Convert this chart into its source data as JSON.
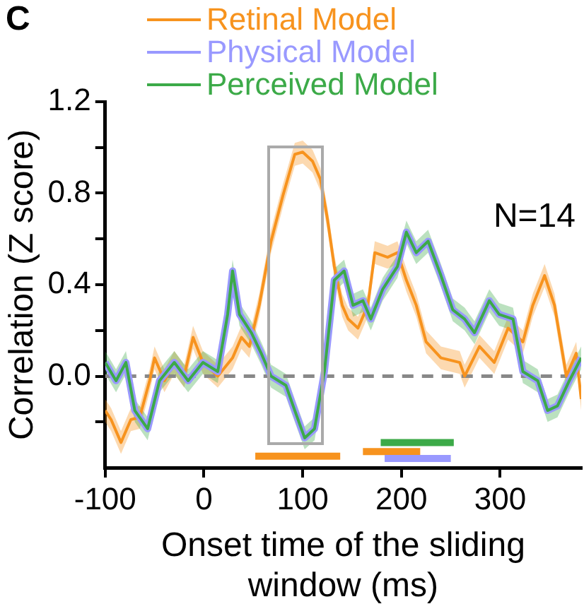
{
  "chart_data": {
    "type": "line",
    "title": "C",
    "xlabel": "Onset time of the sliding window (ms)",
    "ylabel": "Correlation (Z score)",
    "xlim": [
      -100,
      382
    ],
    "xticks": [
      -100,
      0,
      100,
      200,
      300
    ],
    "ylim": [
      -0.4,
      1.2
    ],
    "yticks": [
      {
        "value": -0.2,
        "label": null
      },
      {
        "value": 0,
        "label": "0.0"
      },
      {
        "value": 0.2,
        "label": null
      },
      {
        "value": 0.4,
        "label": "0.4"
      },
      {
        "value": 0.6,
        "label": null
      },
      {
        "value": 0.8,
        "label": "0.8"
      },
      {
        "value": 1.0,
        "label": null
      },
      {
        "value": 1.2,
        "label": "1.2"
      }
    ],
    "grid": false,
    "legend": "top",
    "marker": "none",
    "line_style": "solid",
    "annotations": [
      "N=14"
    ],
    "ref_lines": [
      {
        "axis": "y",
        "value": 0,
        "color": "#888888",
        "line_style": "dashed"
      }
    ],
    "series": [
      {
        "name": "Retinal Model",
        "color": "#f7931e",
        "x": [
          -100,
          -94,
          -84,
          -74,
          -65,
          -55,
          -50,
          -40,
          -30,
          -20,
          -11,
          -1,
          14,
          29,
          38,
          46,
          56,
          68,
          80,
          92,
          100,
          110,
          118,
          125,
          132,
          140,
          146,
          156,
          166,
          173,
          186,
          196,
          205,
          215,
          225,
          240,
          259,
          264,
          279,
          294,
          308,
          323,
          333,
          345,
          355,
          367,
          377,
          382
        ],
        "values": [
          -0.15,
          -0.19,
          -0.29,
          -0.19,
          -0.18,
          -0.02,
          0.08,
          -0.02,
          0.06,
          0,
          0.17,
          0.06,
          0,
          0.08,
          0.17,
          0.13,
          0.31,
          0.59,
          0.79,
          0.97,
          0.98,
          0.94,
          0.86,
          0.69,
          0.48,
          0.31,
          0.25,
          0.21,
          0.31,
          0.54,
          0.52,
          0.54,
          0.42,
          0.31,
          0.15,
          0.08,
          0.06,
          0,
          0.13,
          0.06,
          0.21,
          0.15,
          0.31,
          0.44,
          0.31,
          0,
          0.1,
          -0.1
        ],
        "lower": [
          -0.2,
          -0.24,
          -0.34,
          -0.24,
          -0.23,
          -0.07,
          0.03,
          -0.07,
          0.01,
          -0.05,
          0.12,
          0.01,
          -0.05,
          0.03,
          0.12,
          0.08,
          0.26,
          0.54,
          0.74,
          0.92,
          0.93,
          0.89,
          0.81,
          0.64,
          0.43,
          0.26,
          0.2,
          0.16,
          0.26,
          0.49,
          0.47,
          0.49,
          0.37,
          0.26,
          0.1,
          0.03,
          0.01,
          -0.05,
          0.08,
          0.01,
          0.16,
          0.1,
          0.26,
          0.39,
          0.26,
          -0.05,
          0.05,
          -0.15
        ],
        "upper": [
          -0.1,
          -0.14,
          -0.24,
          -0.14,
          -0.13,
          0.03,
          0.13,
          0.03,
          0.11,
          0.05,
          0.22,
          0.11,
          0.05,
          0.13,
          0.22,
          0.18,
          0.36,
          0.64,
          0.84,
          1.02,
          1.03,
          0.99,
          0.91,
          0.74,
          0.53,
          0.36,
          0.3,
          0.26,
          0.36,
          0.59,
          0.57,
          0.59,
          0.47,
          0.36,
          0.2,
          0.13,
          0.11,
          0.05,
          0.18,
          0.11,
          0.26,
          0.2,
          0.36,
          0.49,
          0.36,
          0.05,
          0.15,
          -0.05
        ]
      },
      {
        "name": "Physical Model",
        "color": "#9999ff",
        "x": [
          -100,
          -89,
          -79,
          -70,
          -57,
          -45,
          -30,
          -16,
          -1,
          14,
          24,
          29,
          36,
          48,
          58,
          68,
          83,
          92,
          102,
          112,
          122,
          132,
          142,
          151,
          161,
          169,
          181,
          196,
          205,
          215,
          227,
          240,
          252,
          264,
          274,
          289,
          299,
          313,
          323,
          338,
          348,
          358,
          370,
          382
        ],
        "values": [
          0.06,
          -0.02,
          0.06,
          -0.15,
          -0.23,
          -0.02,
          0.06,
          -0.02,
          0.06,
          0.02,
          0.27,
          0.46,
          0.27,
          0.19,
          0.1,
          0,
          -0.04,
          -0.15,
          -0.27,
          -0.23,
          0.02,
          0.42,
          0.46,
          0.31,
          0.33,
          0.25,
          0.38,
          0.48,
          0.63,
          0.54,
          0.59,
          0.44,
          0.29,
          0.25,
          0.19,
          0.33,
          0.27,
          0.25,
          0.02,
          -0.02,
          -0.15,
          -0.13,
          -0.02,
          0.08
        ]
      },
      {
        "name": "Perceived Model",
        "color": "#3caa48",
        "x": [
          -100,
          -89,
          -79,
          -70,
          -57,
          -45,
          -30,
          -16,
          -1,
          14,
          24,
          29,
          36,
          48,
          58,
          68,
          83,
          92,
          102,
          112,
          122,
          132,
          142,
          151,
          161,
          169,
          181,
          196,
          205,
          215,
          227,
          240,
          252,
          264,
          274,
          289,
          299,
          313,
          323,
          338,
          348,
          358,
          370,
          382
        ],
        "values": [
          0.06,
          -0.02,
          0.06,
          -0.15,
          -0.23,
          -0.02,
          0.06,
          -0.02,
          0.06,
          0.02,
          0.27,
          0.46,
          0.27,
          0.19,
          0.1,
          0,
          -0.04,
          -0.15,
          -0.27,
          -0.23,
          0.02,
          0.42,
          0.46,
          0.31,
          0.33,
          0.25,
          0.38,
          0.48,
          0.63,
          0.54,
          0.59,
          0.44,
          0.29,
          0.25,
          0.19,
          0.33,
          0.27,
          0.25,
          0.02,
          -0.02,
          -0.15,
          -0.13,
          -0.02,
          0.08
        ],
        "lower": [
          0.01,
          -0.07,
          0.01,
          -0.2,
          -0.28,
          -0.07,
          0.01,
          -0.07,
          0.01,
          -0.03,
          0.22,
          0.41,
          0.22,
          0.14,
          0.05,
          -0.05,
          -0.09,
          -0.2,
          -0.32,
          -0.28,
          -0.03,
          0.37,
          0.41,
          0.26,
          0.28,
          0.2,
          0.33,
          0.43,
          0.58,
          0.49,
          0.54,
          0.39,
          0.24,
          0.2,
          0.14,
          0.28,
          0.22,
          0.2,
          -0.03,
          -0.07,
          -0.2,
          -0.18,
          -0.07,
          0.03
        ],
        "upper": [
          0.11,
          0.03,
          0.11,
          -0.1,
          -0.18,
          0.03,
          0.11,
          0.03,
          0.11,
          0.07,
          0.32,
          0.51,
          0.32,
          0.24,
          0.15,
          0.05,
          0.01,
          -0.1,
          -0.22,
          -0.18,
          0.07,
          0.47,
          0.51,
          0.36,
          0.38,
          0.3,
          0.43,
          0.53,
          0.68,
          0.59,
          0.64,
          0.49,
          0.34,
          0.3,
          0.24,
          0.38,
          0.32,
          0.3,
          0.07,
          0.03,
          -0.1,
          -0.08,
          0.03,
          0.13
        ]
      },
      {
        "color": "#f7931e",
        "x": [
          52,
          138
        ],
        "values": [
          -0.35,
          -0.35
        ]
      },
      {
        "color": "#f7931e",
        "x": [
          161,
          219
        ],
        "values": [
          -0.33,
          -0.33
        ]
      },
      {
        "color": "#3caa48",
        "x": [
          179,
          253
        ],
        "values": [
          -0.29,
          -0.29
        ]
      },
      {
        "color": "#9999ff",
        "x": [
          183,
          250
        ],
        "values": [
          -0.36,
          -0.36
        ]
      }
    ]
  }
}
